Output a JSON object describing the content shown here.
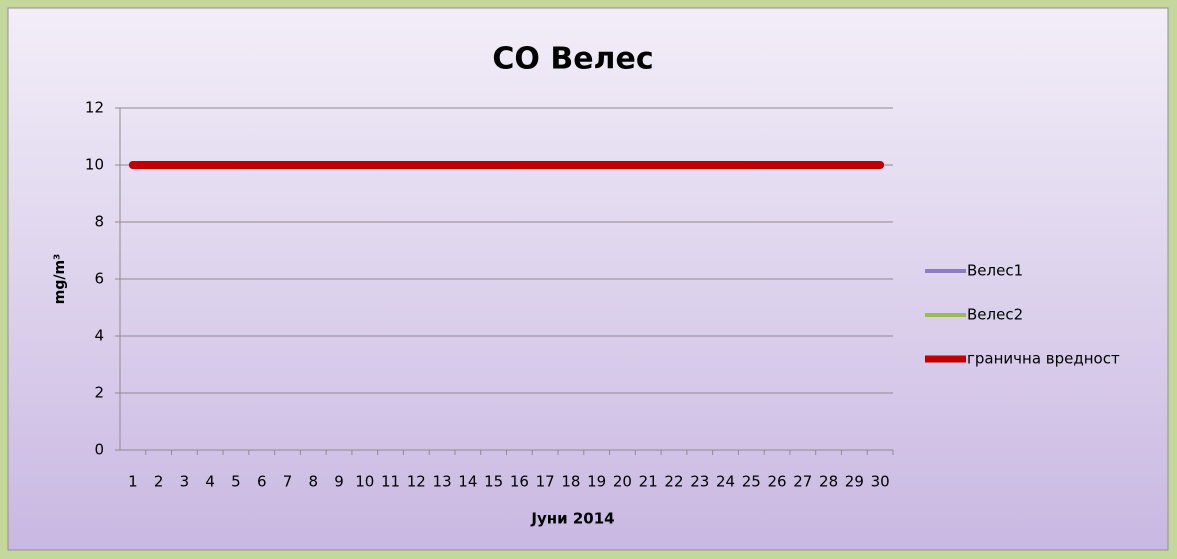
{
  "chart_data": {
    "type": "line",
    "title": "CO Велес",
    "x_label": "Јуни 2014",
    "y_label": "mg/m³",
    "categories": [
      "1",
      "2",
      "3",
      "4",
      "5",
      "6",
      "7",
      "8",
      "9",
      "10",
      "11",
      "12",
      "13",
      "14",
      "15",
      "16",
      "17",
      "18",
      "19",
      "20",
      "21",
      "22",
      "23",
      "24",
      "25",
      "26",
      "27",
      "28",
      "29",
      "30"
    ],
    "series": [
      {
        "name": "Велес1",
        "color": "#8e7cc3",
        "values": [
          null,
          null,
          null,
          null,
          null,
          null,
          null,
          null,
          null,
          null,
          null,
          null,
          null,
          null,
          null,
          null,
          null,
          null,
          null,
          null,
          null,
          null,
          null,
          null,
          null,
          null,
          null,
          null,
          null,
          null
        ]
      },
      {
        "name": "Велес2",
        "color": "#9bbb59",
        "values": [
          null,
          null,
          null,
          null,
          null,
          null,
          null,
          null,
          null,
          null,
          null,
          null,
          null,
          null,
          null,
          null,
          null,
          null,
          null,
          null,
          null,
          null,
          null,
          null,
          null,
          null,
          null,
          null,
          null,
          null
        ]
      },
      {
        "name": "гранична вредност",
        "color": "#c00000",
        "values": [
          10,
          10,
          10,
          10,
          10,
          10,
          10,
          10,
          10,
          10,
          10,
          10,
          10,
          10,
          10,
          10,
          10,
          10,
          10,
          10,
          10,
          10,
          10,
          10,
          10,
          10,
          10,
          10,
          10,
          10
        ]
      }
    ],
    "ylim": [
      0,
      12
    ],
    "yticks": [
      0,
      2,
      4,
      6,
      8,
      10,
      12
    ],
    "grid": true,
    "legend": "right"
  }
}
